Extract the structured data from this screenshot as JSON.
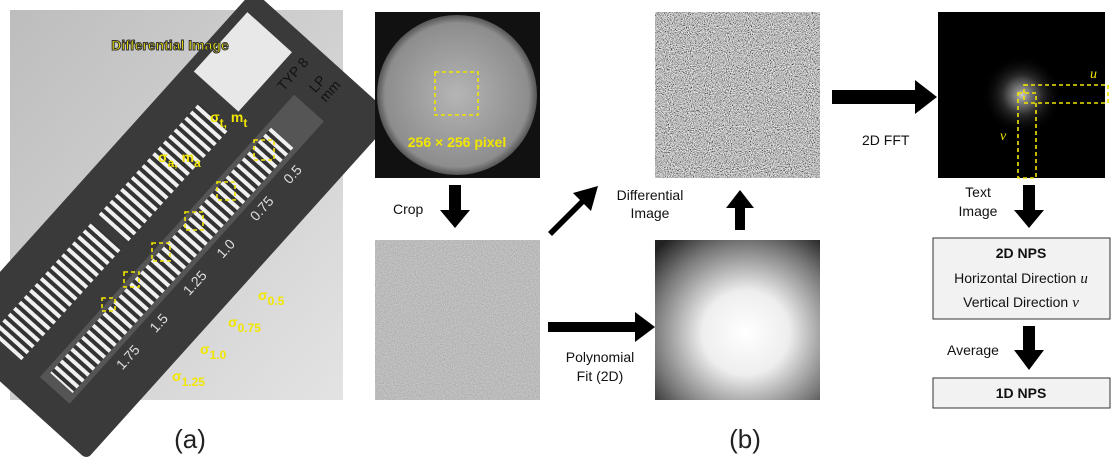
{
  "panel_a": {
    "title": "Differential Image",
    "roi_labels": [
      {
        "base": "σ",
        "sub": "t,"
      },
      {
        "base": "m",
        "sub": "t"
      },
      {
        "base": "σ",
        "sub": "a,"
      },
      {
        "base": "m",
        "sub": "a"
      }
    ],
    "sigma_labels": [
      {
        "base": "σ",
        "sub": "0.5"
      },
      {
        "base": "σ",
        "sub": "0.75"
      },
      {
        "base": "σ",
        "sub": "1.0"
      },
      {
        "base": "σ",
        "sub": "1.25"
      }
    ],
    "phantom_labels": [
      "TYP 8",
      "LP",
      "mm",
      "0.5",
      "0.75",
      "1.0",
      "1.25",
      "1.5",
      "1.75"
    ],
    "caption": "(a)"
  },
  "panel_b": {
    "roi_label": "256 × 256 pixel",
    "crop": "Crop",
    "fit": [
      "Polynomial",
      "Fit (2D)"
    ],
    "differential": [
      "Differential",
      "Image"
    ],
    "fft": "2D FFT",
    "axes": {
      "u": "u",
      "v": "v"
    },
    "text_image": [
      "Text",
      "Image"
    ],
    "nps_box": {
      "title": "2D NPS",
      "lines": [
        {
          "text": "Horizontal Direction",
          "var": "u"
        },
        {
          "text": "Vertical Direction",
          "var": "v"
        }
      ]
    },
    "average": "Average",
    "result": "1D NPS",
    "caption": "(b)"
  }
}
